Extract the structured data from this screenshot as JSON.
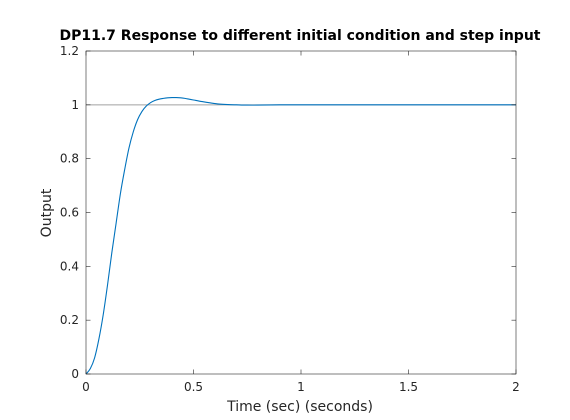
{
  "chart_data": {
    "type": "line",
    "title": "DP11.7 Response to different initial condition and step input",
    "xlabel": "Time (sec) (seconds)",
    "ylabel": "Output",
    "xlim": [
      0,
      2
    ],
    "ylim": [
      0,
      1.2
    ],
    "xticks": [
      0,
      0.5,
      1,
      1.5,
      2
    ],
    "xtick_labels": [
      "0",
      "0.5",
      "1",
      "1.5",
      "2"
    ],
    "yticks": [
      0,
      0.2,
      0.4,
      0.6,
      0.8,
      1,
      1.2
    ],
    "ytick_labels": [
      "0",
      "0.2",
      "0.4",
      "0.6",
      "0.8",
      "1",
      "1.2"
    ],
    "grid": false,
    "reference_line": {
      "y": 1,
      "color": "#a0a0a0"
    },
    "series": [
      {
        "color": "#0072bd",
        "x": [
          0,
          0.02,
          0.04,
          0.06,
          0.08,
          0.1,
          0.12,
          0.14,
          0.16,
          0.18,
          0.2,
          0.22,
          0.24,
          0.26,
          0.28,
          0.3,
          0.32,
          0.34,
          0.36,
          0.38,
          0.4,
          0.42,
          0.44,
          0.46,
          0.48,
          0.5,
          0.54,
          0.58,
          0.62,
          0.66,
          0.7,
          0.75,
          0.8,
          0.9,
          1.0,
          1.2,
          1.4,
          1.6,
          1.8,
          2.0
        ],
        "y": [
          0.0,
          0.02,
          0.06,
          0.13,
          0.22,
          0.33,
          0.45,
          0.56,
          0.67,
          0.76,
          0.84,
          0.9,
          0.945,
          0.975,
          0.995,
          1.008,
          1.016,
          1.021,
          1.024,
          1.026,
          1.027,
          1.027,
          1.026,
          1.024,
          1.021,
          1.018,
          1.012,
          1.007,
          1.003,
          1.001,
          1.0,
          0.999,
          0.999,
          1.0,
          1.0,
          1.0,
          1.0,
          1.0,
          1.0,
          1.0
        ]
      }
    ]
  }
}
